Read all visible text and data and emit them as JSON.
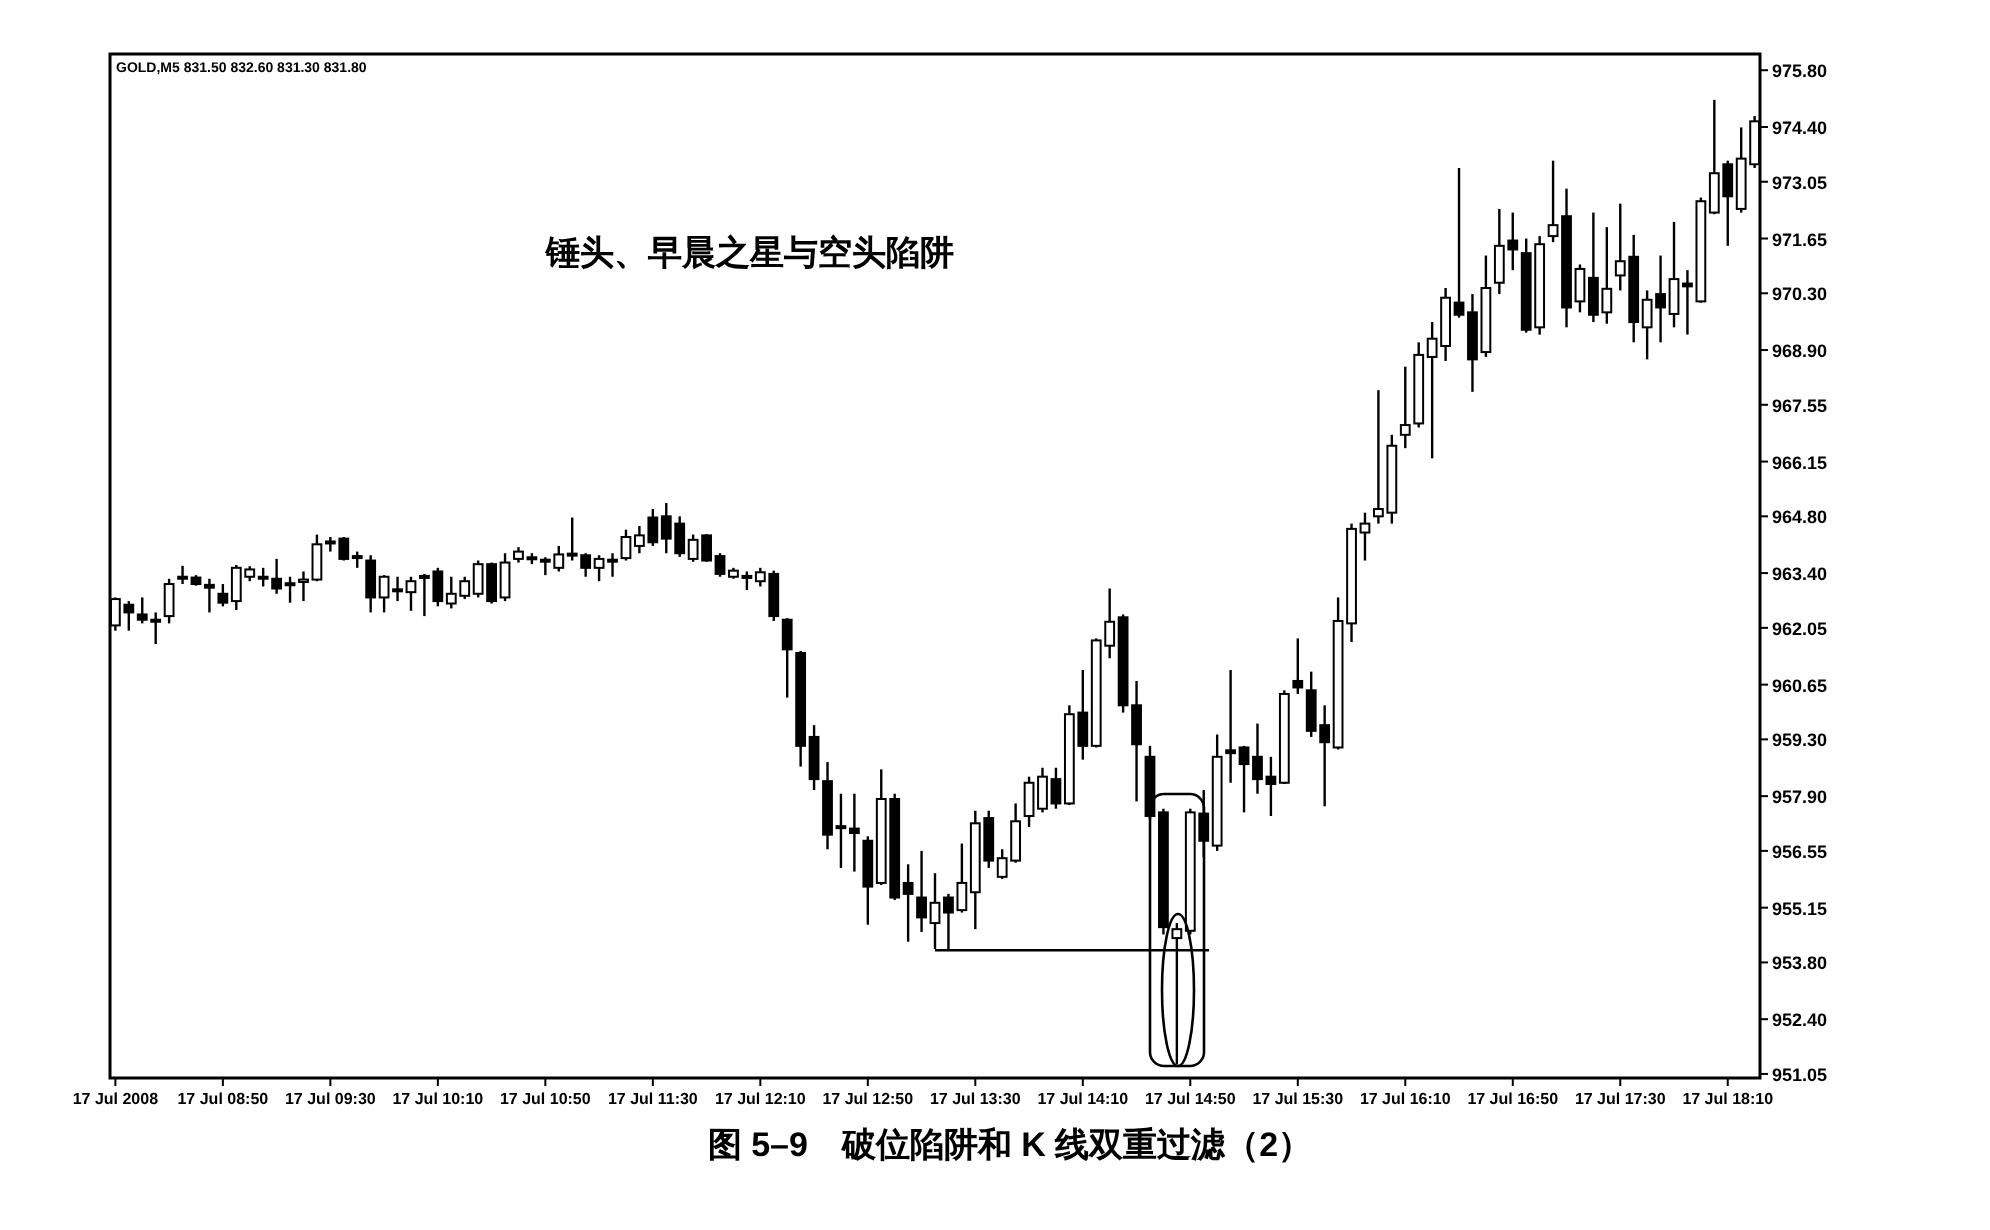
{
  "chart_data": {
    "type": "candlestick",
    "x": [
      "2008-07-17T08:10",
      "2008-07-17T08:15",
      "2008-07-17T08:20",
      "2008-07-17T08:25",
      "2008-07-17T08:30",
      "2008-07-17T08:35",
      "2008-07-17T08:40",
      "2008-07-17T08:45",
      "2008-07-17T08:50",
      "2008-07-17T08:55",
      "2008-07-17T09:00",
      "2008-07-17T09:05",
      "2008-07-17T09:10",
      "2008-07-17T09:15",
      "2008-07-17T09:20",
      "2008-07-17T09:25",
      "2008-07-17T09:30",
      "2008-07-17T09:35",
      "2008-07-17T09:40",
      "2008-07-17T09:45",
      "2008-07-17T09:50",
      "2008-07-17T09:55",
      "2008-07-17T10:00",
      "2008-07-17T10:05",
      "2008-07-17T10:10",
      "2008-07-17T10:15",
      "2008-07-17T10:20",
      "2008-07-17T10:25",
      "2008-07-17T10:30",
      "2008-07-17T10:35",
      "2008-07-17T10:40",
      "2008-07-17T10:45",
      "2008-07-17T10:50",
      "2008-07-17T10:55",
      "2008-07-17T11:00",
      "2008-07-17T11:05",
      "2008-07-17T11:10",
      "2008-07-17T11:15",
      "2008-07-17T11:20",
      "2008-07-17T11:25",
      "2008-07-17T11:30",
      "2008-07-17T11:35",
      "2008-07-17T11:40",
      "2008-07-17T11:45",
      "2008-07-17T11:50",
      "2008-07-17T11:55",
      "2008-07-17T12:00",
      "2008-07-17T12:05",
      "2008-07-17T12:10",
      "2008-07-17T12:15",
      "2008-07-17T12:20",
      "2008-07-17T12:25",
      "2008-07-17T12:30",
      "2008-07-17T12:35",
      "2008-07-17T12:40",
      "2008-07-17T12:45",
      "2008-07-17T12:50",
      "2008-07-17T12:55",
      "2008-07-17T13:00",
      "2008-07-17T13:05",
      "2008-07-17T13:10",
      "2008-07-17T13:15",
      "2008-07-17T13:20",
      "2008-07-17T13:25",
      "2008-07-17T13:30",
      "2008-07-17T13:35",
      "2008-07-17T13:40",
      "2008-07-17T13:45",
      "2008-07-17T13:50",
      "2008-07-17T13:55",
      "2008-07-17T14:00",
      "2008-07-17T14:05",
      "2008-07-17T14:10",
      "2008-07-17T14:15",
      "2008-07-17T14:20",
      "2008-07-17T14:25",
      "2008-07-17T14:30",
      "2008-07-17T14:35",
      "2008-07-17T14:40",
      "2008-07-17T14:45",
      "2008-07-17T14:50",
      "2008-07-17T14:55",
      "2008-07-17T15:00",
      "2008-07-17T15:05",
      "2008-07-17T15:10",
      "2008-07-17T15:15",
      "2008-07-17T15:20",
      "2008-07-17T15:25",
      "2008-07-17T15:30",
      "2008-07-17T15:35",
      "2008-07-17T15:40",
      "2008-07-17T15:45",
      "2008-07-17T15:50",
      "2008-07-17T15:55",
      "2008-07-17T16:00",
      "2008-07-17T16:05",
      "2008-07-17T16:10",
      "2008-07-17T16:15",
      "2008-07-17T16:20",
      "2008-07-17T16:25",
      "2008-07-17T16:30",
      "2008-07-17T16:35",
      "2008-07-17T16:40",
      "2008-07-17T16:45",
      "2008-07-17T16:50",
      "2008-07-17T16:55",
      "2008-07-17T17:00",
      "2008-07-17T17:05",
      "2008-07-17T17:10",
      "2008-07-17T17:15",
      "2008-07-17T17:20",
      "2008-07-17T17:25",
      "2008-07-17T17:30",
      "2008-07-17T17:35",
      "2008-07-17T17:40",
      "2008-07-17T17:45",
      "2008-07-17T17:50",
      "2008-07-17T17:55",
      "2008-07-17T18:00",
      "2008-07-17T18:05",
      "2008-07-17T18:10",
      "2008-07-17T18:15",
      "2008-07-17T18:20"
    ],
    "ohlc": [
      [
        962.11,
        962.8,
        961.98,
        962.76
      ],
      [
        962.62,
        962.71,
        961.98,
        962.43
      ],
      [
        962.38,
        962.8,
        962.16,
        962.25
      ],
      [
        962.22,
        962.43,
        961.65,
        962.25
      ],
      [
        962.34,
        963.26,
        962.16,
        963.13
      ],
      [
        963.27,
        963.58,
        963.13,
        963.31
      ],
      [
        963.29,
        963.35,
        963.09,
        963.13
      ],
      [
        963.11,
        963.26,
        962.43,
        963.04
      ],
      [
        962.89,
        963.13,
        962.58,
        962.67
      ],
      [
        962.71,
        963.6,
        962.49,
        963.53
      ],
      [
        963.31,
        963.57,
        963.2,
        963.49
      ],
      [
        963.31,
        963.53,
        963.07,
        963.27
      ],
      [
        963.26,
        963.75,
        962.89,
        963.02
      ],
      [
        963.15,
        963.31,
        962.67,
        963.11
      ],
      [
        963.18,
        963.44,
        962.71,
        963.24
      ],
      [
        963.24,
        964.35,
        963.2,
        964.11
      ],
      [
        964.14,
        964.29,
        963.93,
        964.18
      ],
      [
        964.25,
        964.29,
        963.71,
        963.75
      ],
      [
        963.82,
        963.93,
        963.53,
        963.79
      ],
      [
        963.71,
        963.84,
        962.43,
        962.8
      ],
      [
        962.8,
        963.35,
        962.43,
        963.31
      ],
      [
        963.0,
        963.31,
        962.71,
        962.96
      ],
      [
        962.93,
        963.31,
        962.47,
        963.2
      ],
      [
        963.33,
        963.38,
        962.34,
        963.29
      ],
      [
        963.44,
        963.53,
        962.58,
        962.71
      ],
      [
        962.65,
        963.31,
        962.53,
        962.89
      ],
      [
        962.84,
        963.31,
        962.76,
        963.2
      ],
      [
        962.89,
        963.71,
        962.8,
        963.62
      ],
      [
        963.62,
        963.66,
        962.65,
        962.71
      ],
      [
        962.8,
        963.89,
        962.71,
        963.66
      ],
      [
        963.75,
        964.04,
        963.66,
        963.93
      ],
      [
        963.79,
        963.89,
        963.62,
        963.75
      ],
      [
        963.73,
        963.79,
        963.35,
        963.7
      ],
      [
        963.53,
        964.07,
        963.44,
        963.86
      ],
      [
        963.88,
        964.77,
        963.71,
        963.84
      ],
      [
        963.84,
        963.89,
        963.31,
        963.53
      ],
      [
        963.53,
        963.84,
        963.2,
        963.75
      ],
      [
        963.73,
        963.89,
        963.31,
        963.7
      ],
      [
        963.77,
        964.47,
        963.71,
        964.29
      ],
      [
        964.07,
        964.56,
        963.89,
        964.33
      ],
      [
        964.77,
        964.98,
        964.07,
        964.16
      ],
      [
        964.8,
        965.13,
        963.89,
        964.25
      ],
      [
        964.62,
        964.8,
        963.8,
        963.89
      ],
      [
        963.75,
        964.35,
        963.68,
        964.22
      ],
      [
        964.33,
        964.36,
        963.68,
        963.71
      ],
      [
        963.82,
        963.89,
        963.31,
        963.38
      ],
      [
        963.31,
        963.53,
        963.26,
        963.46
      ],
      [
        963.33,
        963.44,
        962.98,
        963.29
      ],
      [
        963.2,
        963.53,
        963.07,
        963.42
      ],
      [
        963.38,
        963.46,
        962.22,
        962.34
      ],
      [
        962.25,
        962.29,
        960.33,
        961.52
      ],
      [
        961.43,
        961.48,
        958.63,
        959.14
      ],
      [
        959.36,
        959.65,
        958.05,
        958.32
      ],
      [
        958.27,
        958.74,
        956.59,
        956.95
      ],
      [
        957.16,
        957.96,
        956.13,
        957.12
      ],
      [
        957.1,
        957.96,
        956.04,
        956.99
      ],
      [
        956.8,
        956.91,
        954.73,
        955.67
      ],
      [
        955.76,
        958.56,
        955.71,
        957.83
      ],
      [
        957.83,
        957.96,
        955.34,
        955.4
      ],
      [
        955.76,
        956.22,
        954.31,
        955.49
      ],
      [
        955.4,
        956.55,
        954.55,
        954.91
      ],
      [
        954.77,
        956.0,
        954.13,
        955.27
      ],
      [
        955.4,
        955.49,
        954.13,
        955.03
      ],
      [
        955.09,
        956.73,
        955.03,
        955.76
      ],
      [
        955.53,
        957.54,
        954.62,
        957.23
      ],
      [
        957.36,
        957.54,
        956.13,
        956.31
      ],
      [
        955.91,
        956.59,
        955.86,
        956.37
      ],
      [
        956.31,
        957.72,
        956.26,
        957.28
      ],
      [
        957.41,
        958.38,
        957.14,
        958.23
      ],
      [
        957.59,
        958.6,
        957.5,
        958.38
      ],
      [
        958.32,
        958.6,
        957.59,
        957.72
      ],
      [
        957.72,
        960.14,
        957.68,
        959.92
      ],
      [
        959.96,
        961.01,
        958.8,
        959.14
      ],
      [
        959.14,
        961.79,
        959.1,
        961.74
      ],
      [
        961.61,
        963.02,
        961.3,
        962.2
      ],
      [
        962.31,
        962.38,
        959.96,
        960.14
      ],
      [
        960.14,
        960.74,
        957.77,
        959.18
      ],
      [
        958.87,
        959.14,
        957.32,
        957.41
      ],
      [
        957.5,
        957.59,
        954.49,
        954.67
      ],
      [
        954.4,
        954.77,
        951.29,
        954.62
      ],
      [
        954.58,
        957.59,
        954.49,
        957.5
      ],
      [
        957.47,
        958.05,
        956.4,
        956.8
      ],
      [
        956.68,
        959.42,
        956.55,
        958.87
      ],
      [
        959.03,
        961.01,
        958.23,
        958.96
      ],
      [
        959.1,
        959.14,
        957.5,
        958.69
      ],
      [
        958.87,
        959.69,
        957.96,
        958.32
      ],
      [
        958.38,
        958.87,
        957.41,
        958.2
      ],
      [
        958.23,
        960.51,
        958.2,
        960.42
      ],
      [
        960.74,
        961.79,
        960.42,
        960.58
      ],
      [
        960.51,
        960.97,
        959.36,
        959.51
      ],
      [
        959.65,
        960.14,
        957.65,
        959.23
      ],
      [
        959.1,
        962.8,
        959.05,
        962.22
      ],
      [
        962.16,
        964.62,
        961.7,
        964.49
      ],
      [
        964.4,
        964.89,
        963.71,
        964.62
      ],
      [
        964.8,
        967.91,
        964.62,
        964.98
      ],
      [
        964.89,
        966.81,
        964.62,
        966.54
      ],
      [
        966.81,
        968.49,
        966.48,
        967.05
      ],
      [
        967.09,
        969.09,
        966.99,
        968.78
      ],
      [
        968.73,
        969.59,
        966.23,
        969.18
      ],
      [
        969.0,
        970.43,
        968.63,
        970.19
      ],
      [
        970.07,
        973.39,
        969.7,
        969.77
      ],
      [
        969.83,
        970.28,
        967.87,
        968.67
      ],
      [
        968.85,
        971.23,
        968.73,
        970.43
      ],
      [
        970.56,
        972.38,
        970.28,
        971.47
      ],
      [
        971.6,
        972.29,
        970.87,
        971.38
      ],
      [
        971.29,
        971.65,
        969.33,
        969.4
      ],
      [
        969.46,
        971.71,
        969.28,
        971.51
      ],
      [
        971.71,
        973.57,
        971.56,
        971.98
      ],
      [
        972.2,
        972.88,
        969.46,
        969.95
      ],
      [
        970.1,
        971.01,
        969.83,
        970.9
      ],
      [
        970.68,
        972.29,
        969.59,
        969.77
      ],
      [
        969.83,
        971.93,
        969.55,
        970.41
      ],
      [
        970.74,
        972.51,
        970.37,
        971.09
      ],
      [
        971.2,
        971.74,
        969.09,
        969.59
      ],
      [
        969.46,
        970.37,
        968.67,
        970.14
      ],
      [
        970.28,
        971.23,
        969.09,
        969.95
      ],
      [
        969.79,
        972.06,
        969.46,
        970.65
      ],
      [
        970.54,
        970.87,
        969.28,
        970.47
      ],
      [
        970.1,
        972.66,
        970.07,
        972.57
      ],
      [
        972.29,
        975.07,
        972.25,
        973.26
      ],
      [
        973.48,
        973.57,
        971.47,
        972.69
      ],
      [
        972.38,
        974.39,
        972.29,
        973.62
      ],
      [
        973.48,
        974.67,
        973.39,
        974.54
      ]
    ],
    "series": [
      {
        "type": "line",
        "color": "#000000",
        "x": [
          "2008-07-17T13:15",
          "2008-07-17T14:57"
        ],
        "values": [
          954.1,
          954.1
        ]
      }
    ],
    "xlim": [
      "2008-07-17T08:08",
      "2008-07-17T18:22"
    ],
    "ylim": [
      950.95,
      976.2
    ],
    "xticks": [
      {
        "value": "2008-07-17T08:10",
        "label": "17 Jul 2008"
      },
      {
        "value": "2008-07-17T08:50",
        "label": "17 Jul 08:50"
      },
      {
        "value": "2008-07-17T09:30",
        "label": "17 Jul 09:30"
      },
      {
        "value": "2008-07-17T10:10",
        "label": "17 Jul 10:10"
      },
      {
        "value": "2008-07-17T10:50",
        "label": "17 Jul 10:50"
      },
      {
        "value": "2008-07-17T11:30",
        "label": "17 Jul 11:30"
      },
      {
        "value": "2008-07-17T12:10",
        "label": "17 Jul 12:10"
      },
      {
        "value": "2008-07-17T12:50",
        "label": "17 Jul 12:50"
      },
      {
        "value": "2008-07-17T13:30",
        "label": "17 Jul 13:30"
      },
      {
        "value": "2008-07-17T14:10",
        "label": "17 Jul 14:10"
      },
      {
        "value": "2008-07-17T14:50",
        "label": "17 Jul 14:50"
      },
      {
        "value": "2008-07-17T15:30",
        "label": "17 Jul 15:30"
      },
      {
        "value": "2008-07-17T16:10",
        "label": "17 Jul 16:10"
      },
      {
        "value": "2008-07-17T16:50",
        "label": "17 Jul 16:50"
      },
      {
        "value": "2008-07-17T17:30",
        "label": "17 Jul 17:30"
      },
      {
        "value": "2008-07-17T18:10",
        "label": "17 Jul 18:10"
      }
    ],
    "yticks": [
      {
        "value": 951.05,
        "label": "951.05"
      },
      {
        "value": 952.4,
        "label": "952.40"
      },
      {
        "value": 953.8,
        "label": "953.80"
      },
      {
        "value": 955.15,
        "label": "955.15"
      },
      {
        "value": 956.55,
        "label": "956.55"
      },
      {
        "value": 957.9,
        "label": "957.90"
      },
      {
        "value": 959.3,
        "label": "959.30"
      },
      {
        "value": 960.65,
        "label": "960.65"
      },
      {
        "value": 962.05,
        "label": "962.05"
      },
      {
        "value": 963.4,
        "label": "963.40"
      },
      {
        "value": 964.8,
        "label": "964.80"
      },
      {
        "value": 966.15,
        "label": "966.15"
      },
      {
        "value": 967.55,
        "label": "967.55"
      },
      {
        "value": 968.9,
        "label": "968.90"
      },
      {
        "value": 970.3,
        "label": "970.30"
      },
      {
        "value": 971.65,
        "label": "971.65"
      },
      {
        "value": 973.05,
        "label": "973.05"
      },
      {
        "value": 974.4,
        "label": "974.40"
      },
      {
        "value": 975.8,
        "label": "975.80"
      }
    ],
    "annotations": [
      "GOLD,M5 831.50 832.60 831.30 831.80",
      "锤头、早晨之星与空头陷阱",
      "图 5–9　破位陷阱和 K 线双重过滤（2）"
    ]
  }
}
